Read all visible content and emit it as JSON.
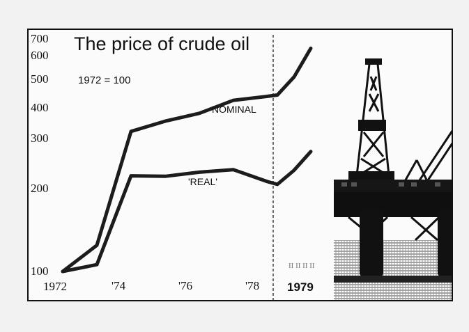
{
  "chart_data": {
    "type": "line",
    "title": "The price of crude oil",
    "subtitle": "1972 = 100",
    "y_scale": "log",
    "ylim": [
      100,
      700
    ],
    "y_ticks": [
      "100",
      "200",
      "300",
      "400",
      "500",
      "600",
      "700"
    ],
    "x_ticks": [
      "1972",
      "'74",
      "'76",
      "'78",
      "1979"
    ],
    "series": [
      {
        "name": "NOMINAL",
        "x": [
          1972,
          1973,
          1974,
          1975,
          1976,
          1977,
          1978,
          1979.0,
          1979.5,
          1980
        ],
        "values": [
          100,
          125,
          330,
          360,
          385,
          430,
          445,
          450,
          525,
          670
        ]
      },
      {
        "name": "'REAL'",
        "x": [
          1972,
          1973,
          1974,
          1975,
          1976,
          1977,
          1978,
          1979.0,
          1979.5,
          1980
        ],
        "values": [
          100,
          106,
          226,
          225,
          233,
          238,
          215,
          210,
          237,
          278
        ]
      }
    ]
  }
}
